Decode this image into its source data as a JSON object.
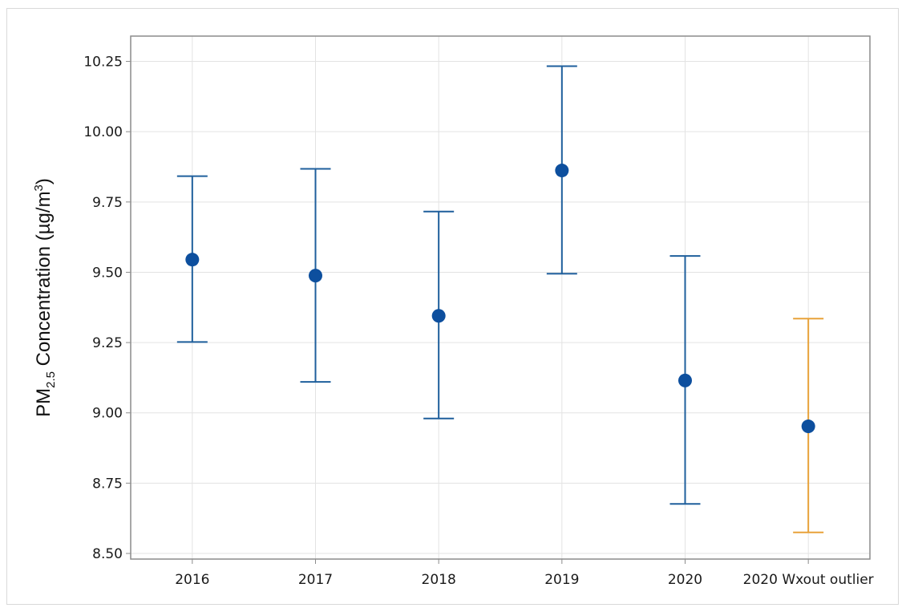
{
  "chart_data": {
    "type": "scatter",
    "subtype": "interval-plot",
    "title": "",
    "xlabel": "",
    "ylabel": {
      "prefix": "PM",
      "subscript": "2.5",
      "middle": " Concentration (µg/m",
      "superscript": "3",
      "suffix": ")"
    },
    "categories": [
      "2016",
      "2017",
      "2018",
      "2019",
      "2020",
      "2020 Wxout outlier"
    ],
    "points": [
      {
        "category": "2016",
        "mean": 9.545,
        "lower": 9.252,
        "upper": 9.842,
        "color": "#1f5f9c"
      },
      {
        "category": "2017",
        "mean": 9.488,
        "lower": 9.11,
        "upper": 9.868,
        "color": "#1f5f9c"
      },
      {
        "category": "2018",
        "mean": 9.345,
        "lower": 8.98,
        "upper": 9.716,
        "color": "#1f5f9c"
      },
      {
        "category": "2019",
        "mean": 9.862,
        "lower": 9.495,
        "upper": 10.233,
        "color": "#1f5f9c"
      },
      {
        "category": "2020",
        "mean": 9.115,
        "lower": 8.676,
        "upper": 9.558,
        "color": "#1f5f9c"
      },
      {
        "category": "2020 Wxout outlier",
        "mean": 8.952,
        "lower": 8.575,
        "upper": 9.335,
        "color": "#e8a23a"
      }
    ],
    "marker_color": "#0d4f9e",
    "ylim": [
      8.48,
      10.34
    ],
    "yticks": [
      "8.50",
      "8.75",
      "9.00",
      "9.25",
      "9.50",
      "9.75",
      "10.00",
      "10.25"
    ],
    "grid": true,
    "legend": "none"
  }
}
